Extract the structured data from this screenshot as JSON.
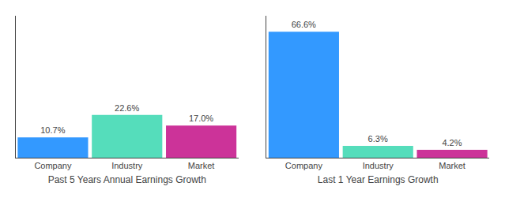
{
  "chart_data": [
    {
      "type": "bar",
      "title": "Past 5 Years Annual Earnings Growth",
      "categories": [
        "Company",
        "Industry",
        "Market"
      ],
      "values": [
        10.7,
        22.6,
        17.0
      ],
      "value_labels": [
        "10.7%",
        "22.6%",
        "17.0%"
      ],
      "colors": [
        "#3399ff",
        "#55ddbb",
        "#cc3399"
      ],
      "ylim": [
        0,
        75
      ],
      "grid": false,
      "data_labels": true,
      "tick_labels": "x"
    },
    {
      "type": "bar",
      "title": "Last 1 Year Earnings Growth",
      "categories": [
        "Company",
        "Industry",
        "Market"
      ],
      "values": [
        66.6,
        6.3,
        4.2
      ],
      "value_labels": [
        "66.6%",
        "6.3%",
        "4.2%"
      ],
      "colors": [
        "#3399ff",
        "#55ddbb",
        "#cc3399"
      ],
      "ylim": [
        0,
        75
      ],
      "grid": false,
      "data_labels": true,
      "tick_labels": "x"
    }
  ]
}
